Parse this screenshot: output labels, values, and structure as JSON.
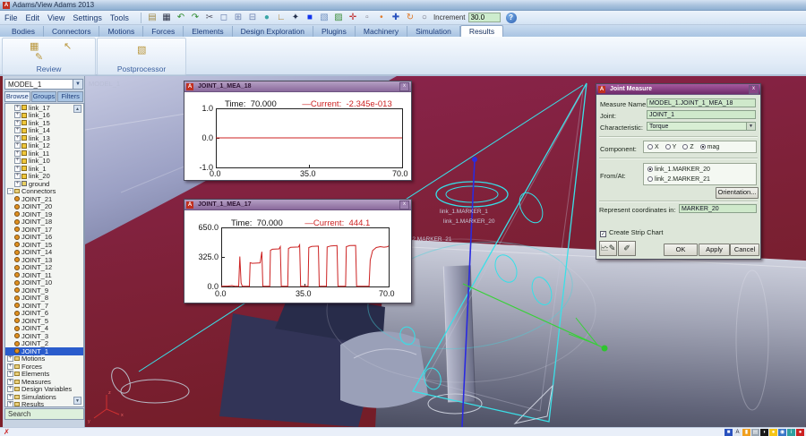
{
  "window": {
    "title": "Adams/View Adams 2013",
    "app_icon": "A"
  },
  "menubar": {
    "items": [
      "File",
      "Edit",
      "View",
      "Settings",
      "Tools"
    ]
  },
  "toolbar": {
    "icons": [
      {
        "name": "open-file-icon",
        "glyph": "▤",
        "color": "#a08a4a"
      },
      {
        "name": "save-icon",
        "glyph": "▦",
        "color": "#30364a"
      },
      {
        "name": "undo-icon",
        "glyph": "↶",
        "color": "#2e8b2e"
      },
      {
        "name": "redo-icon",
        "glyph": "↷",
        "color": "#2e8b2e"
      },
      {
        "name": "cut-icon",
        "glyph": "✂",
        "color": "#556"
      },
      {
        "name": "front-view-icon",
        "glyph": "◻",
        "color": "#6a7fae"
      },
      {
        "name": "top-view-icon",
        "glyph": "⊞",
        "color": "#6a7fae"
      },
      {
        "name": "iso-view-icon",
        "glyph": "⊟",
        "color": "#6a7fae"
      },
      {
        "name": "shaded-sphere-icon",
        "glyph": "●",
        "color": "#3aa6a6"
      },
      {
        "name": "axes-icon",
        "glyph": "∟",
        "color": "#b08030"
      },
      {
        "name": "view-grid-icon",
        "glyph": "✦",
        "color": "#26324e"
      },
      {
        "name": "color-swatch-icon",
        "glyph": "■",
        "color": "#1133ee"
      },
      {
        "name": "render-icon",
        "glyph": "▧",
        "color": "#7090c0"
      },
      {
        "name": "export-image-icon",
        "glyph": "▨",
        "color": "#3f8f3f"
      },
      {
        "name": "fit-view-icon",
        "glyph": "✛",
        "color": "#c03030"
      },
      {
        "name": "select-area-icon",
        "glyph": "▫",
        "color": "#778"
      },
      {
        "name": "point-icon",
        "glyph": "•",
        "color": "#e07a2a"
      },
      {
        "name": "translate-icon",
        "glyph": "✚",
        "color": "#2a52be"
      },
      {
        "name": "rotate-icon",
        "glyph": "↻",
        "color": "#e07a2a"
      },
      {
        "name": "zoom-tool-icon",
        "glyph": "○",
        "color": "#667"
      }
    ],
    "increment_label": "Increment",
    "increment_value": "30.0"
  },
  "ribbon": {
    "tabs": [
      "Bodies",
      "Connectors",
      "Motions",
      "Forces",
      "Elements",
      "Design Exploration",
      "Plugins",
      "Machinery",
      "Simulation",
      "Results"
    ],
    "active_tab": "Results",
    "groups": [
      {
        "label": "Review"
      },
      {
        "label": "Postprocessor"
      }
    ]
  },
  "sidebar": {
    "model_selector": "MODEL_1",
    "tabs": [
      "Browse",
      "Groups",
      "Filters"
    ],
    "active_tab": "Browse",
    "search_label": "Search",
    "tree": [
      {
        "label": "link_17",
        "icon": "part",
        "exp": "+",
        "depth": 1
      },
      {
        "label": "link_16",
        "icon": "part",
        "exp": "+",
        "depth": 1
      },
      {
        "label": "link_15",
        "icon": "part",
        "exp": "+",
        "depth": 1
      },
      {
        "label": "link_14",
        "icon": "part",
        "exp": "+",
        "depth": 1
      },
      {
        "label": "link_13",
        "icon": "part",
        "exp": "+",
        "depth": 1
      },
      {
        "label": "link_12",
        "icon": "part",
        "exp": "+",
        "depth": 1
      },
      {
        "label": "link_11",
        "icon": "part",
        "exp": "+",
        "depth": 1
      },
      {
        "label": "link_10",
        "icon": "part",
        "exp": "+",
        "depth": 1
      },
      {
        "label": "link_1",
        "icon": "part",
        "exp": "+",
        "depth": 1
      },
      {
        "label": "link_20",
        "icon": "part",
        "exp": "+",
        "depth": 1
      },
      {
        "label": "ground",
        "icon": "ground",
        "exp": "+",
        "depth": 1
      },
      {
        "label": "Connectors",
        "icon": "folder",
        "exp": "-",
        "depth": 0
      },
      {
        "label": "JOINT_21",
        "icon": "joint",
        "exp": "",
        "depth": 1
      },
      {
        "label": "JOINT_20",
        "icon": "joint",
        "exp": "",
        "depth": 1
      },
      {
        "label": "JOINT_19",
        "icon": "joint",
        "exp": "",
        "depth": 1
      },
      {
        "label": "JOINT_18",
        "icon": "joint",
        "exp": "",
        "depth": 1
      },
      {
        "label": "JOINT_17",
        "icon": "joint",
        "exp": "",
        "depth": 1
      },
      {
        "label": "JOINT_16",
        "icon": "joint",
        "exp": "",
        "depth": 1
      },
      {
        "label": "JOINT_15",
        "icon": "joint",
        "exp": "",
        "depth": 1
      },
      {
        "label": "JOINT_14",
        "icon": "joint",
        "exp": "",
        "depth": 1
      },
      {
        "label": "JOINT_13",
        "icon": "joint",
        "exp": "",
        "depth": 1
      },
      {
        "label": "JOINT_12",
        "icon": "joint",
        "exp": "",
        "depth": 1
      },
      {
        "label": "JOINT_11",
        "icon": "joint",
        "exp": "",
        "depth": 1
      },
      {
        "label": "JOINT_10",
        "icon": "joint",
        "exp": "",
        "depth": 1
      },
      {
        "label": "JOINT_9",
        "icon": "joint",
        "exp": "",
        "depth": 1
      },
      {
        "label": "JOINT_8",
        "icon": "joint",
        "exp": "",
        "depth": 1
      },
      {
        "label": "JOINT_7",
        "icon": "joint",
        "exp": "",
        "depth": 1
      },
      {
        "label": "JOINT_6",
        "icon": "joint",
        "exp": "",
        "depth": 1
      },
      {
        "label": "JOINT_5",
        "icon": "joint",
        "exp": "",
        "depth": 1
      },
      {
        "label": "JOINT_4",
        "icon": "joint",
        "exp": "",
        "depth": 1
      },
      {
        "label": "JOINT_3",
        "icon": "joint",
        "exp": "",
        "depth": 1
      },
      {
        "label": "JOINT_2",
        "icon": "joint",
        "exp": "",
        "depth": 1
      },
      {
        "label": "JOINT_1",
        "icon": "joint",
        "exp": "",
        "depth": 1,
        "selected": true
      },
      {
        "label": "Motions",
        "icon": "folder",
        "exp": "+",
        "depth": 0
      },
      {
        "label": "Forces",
        "icon": "folder",
        "exp": "+",
        "depth": 0
      },
      {
        "label": "Elements",
        "icon": "folder",
        "exp": "+",
        "depth": 0
      },
      {
        "label": "Measures",
        "icon": "folder",
        "exp": "+",
        "depth": 0
      },
      {
        "label": "Design Variables",
        "icon": "folder",
        "exp": "+",
        "depth": 0
      },
      {
        "label": "Simulations",
        "icon": "folder",
        "exp": "+",
        "depth": 0
      },
      {
        "label": "Results",
        "icon": "folder",
        "exp": "+",
        "depth": 0
      }
    ]
  },
  "viewport": {
    "model_label": "MODEL_1",
    "labels": [
      "link_1.MARKER_1",
      "link_1.MARKER_20",
      "link_2.MARKER_21"
    ],
    "triad": {
      "x": "x",
      "y": "y",
      "z": "z"
    }
  },
  "charts": [
    {
      "window_title": "JOINT_1_MEA_18",
      "time_label": "Time:",
      "time_value": "70.000",
      "current_label": "—Current:",
      "current_value": "-2.345e-013"
    },
    {
      "window_title": "JOINT_1_MEA_17",
      "time_label": "Time:",
      "time_value": "70.000",
      "current_label": "—Current:",
      "current_value": "444.1"
    }
  ],
  "chart_data": [
    {
      "type": "line",
      "title": "JOINT_1_MEA_18",
      "xlabel": "",
      "ylabel": "",
      "xlim": [
        0,
        70
      ],
      "ylim": [
        -1,
        1
      ],
      "x_ticks": [
        "0.0",
        "35.0",
        "70.0"
      ],
      "y_ticks": [
        "1.0",
        "0.0",
        "-1.0"
      ],
      "legend_position": "none",
      "grid": false,
      "series": [
        {
          "name": "Current",
          "color": "#cc2222",
          "points": [
            [
              0,
              0
            ],
            [
              70,
              0
            ]
          ]
        }
      ]
    },
    {
      "type": "line",
      "title": "JOINT_1_MEA_17",
      "xlabel": "",
      "ylabel": "",
      "xlim": [
        0,
        70
      ],
      "ylim": [
        0,
        650
      ],
      "x_ticks": [
        "0.0",
        "35.0",
        "70.0"
      ],
      "y_ticks": [
        "650.0",
        "325.0",
        "0.0"
      ],
      "legend_position": "none",
      "grid": false,
      "series": [
        {
          "name": "Current",
          "color": "#cc2222",
          "points": [
            [
              0,
              3
            ],
            [
              3,
              5
            ],
            [
              4.5,
              10
            ],
            [
              5.5,
              4
            ],
            [
              7.3,
              3
            ],
            [
              7.8,
              330
            ],
            [
              8.3,
              40
            ],
            [
              8.8,
              3
            ],
            [
              11.8,
              3
            ],
            [
              12.1,
              262
            ],
            [
              13,
              255
            ],
            [
              16.3,
              260
            ],
            [
              17,
              382
            ],
            [
              17.4,
              3
            ],
            [
              20.3,
              3
            ],
            [
              20.6,
              398
            ],
            [
              21.4,
              410
            ],
            [
              24.2,
              414
            ],
            [
              24.7,
              438
            ],
            [
              25.1,
              3
            ],
            [
              27.8,
              3
            ],
            [
              28.1,
              418
            ],
            [
              29,
              430
            ],
            [
              32.3,
              434
            ],
            [
              32.8,
              458
            ],
            [
              33.2,
              3
            ],
            [
              36.3,
              3
            ],
            [
              36.6,
              428
            ],
            [
              37.8,
              440
            ],
            [
              40.6,
              444
            ],
            [
              41,
              3
            ],
            [
              44,
              3
            ],
            [
              44.3,
              434
            ],
            [
              45.8,
              446
            ],
            [
              48.4,
              450
            ],
            [
              48.8,
              3
            ],
            [
              52,
              3
            ],
            [
              52.3,
              438
            ],
            [
              53.8,
              450
            ],
            [
              56.2,
              452
            ],
            [
              56.6,
              3
            ],
            [
              61.8,
              3
            ],
            [
              62.3,
              290
            ],
            [
              63.3,
              395
            ],
            [
              64.8,
              428
            ],
            [
              66.5,
              438
            ],
            [
              68,
              432
            ],
            [
              69.2,
              436
            ],
            [
              70,
              444
            ]
          ]
        }
      ]
    }
  ],
  "dialog": {
    "title": "Joint Measure",
    "measure_name_label": "Measure Name",
    "measure_name_value": "MODEL_1.JOINT_1_MEA_18",
    "joint_label": "Joint:",
    "joint_value": "JOINT_1",
    "characteristic_label": "Characteristic:",
    "characteristic_value": "Torque",
    "component_label": "Component:",
    "component_options": [
      "X",
      "Y",
      "Z",
      "mag"
    ],
    "component_selected": "mag",
    "fromat_label": "From/At:",
    "fromat_options": [
      "link_1.MARKER_20",
      "link_2.MARKER_21"
    ],
    "fromat_selected": "link_1.MARKER_20",
    "orientation_button": "Orientation...",
    "represent_label": "Represent coordinates in:",
    "represent_value": "MARKER_20",
    "strip_chart_label": "Create Strip Chart",
    "strip_chart_checked": true,
    "ok": "OK",
    "apply": "Apply",
    "cancel": "Cancel"
  },
  "statusbar": {
    "stop_glyph": "✗"
  },
  "tray_icons": [
    {
      "name": "app-blue-icon",
      "color": "#2a52be",
      "glyph": "■"
    },
    {
      "name": "language-bar-icon",
      "color": "#dfe6ef",
      "glyph": "A"
    },
    {
      "name": "update-icon",
      "color": "#f0a020",
      "glyph": "▮"
    },
    {
      "name": "display-icon",
      "color": "#9aa6b2",
      "glyph": "▤"
    },
    {
      "name": "chat-icon",
      "color": "#1a1a1a",
      "glyph": "◗"
    },
    {
      "name": "clock-icon",
      "color": "#f5c518",
      "glyph": "●"
    },
    {
      "name": "user-icon",
      "color": "#3a76c8",
      "glyph": "◉"
    },
    {
      "name": "info-icon",
      "color": "#30a0a0",
      "glyph": "i"
    },
    {
      "name": "alert-icon",
      "color": "#cc2222",
      "glyph": "●"
    }
  ]
}
